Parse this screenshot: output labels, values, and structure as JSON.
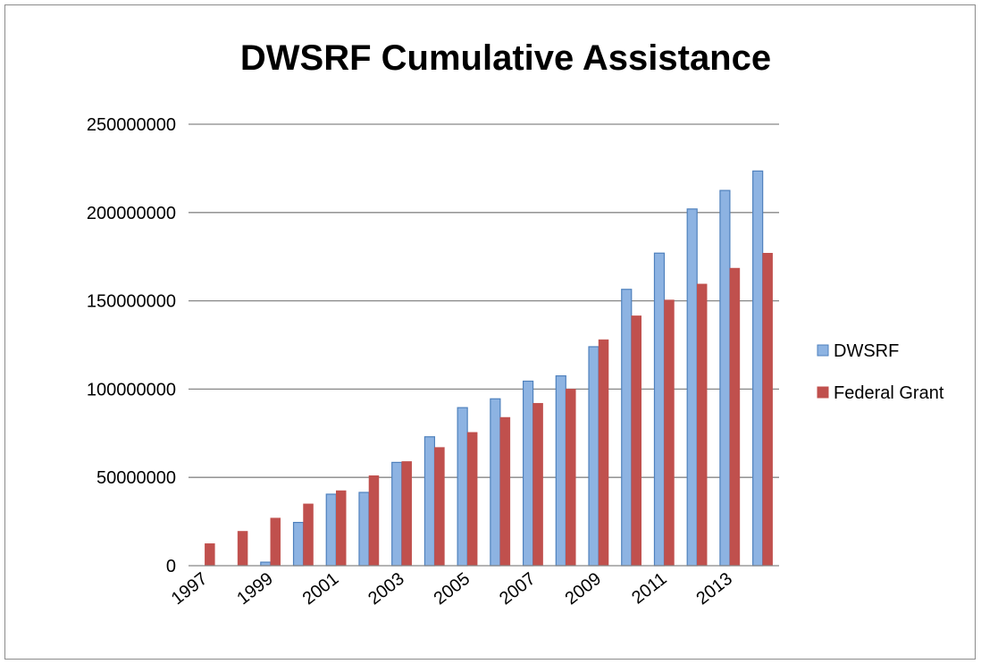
{
  "chart_data": {
    "type": "bar",
    "title": "DWSRF Cumulative Assistance",
    "xlabel": "",
    "ylabel": "",
    "ylim": [
      0,
      250000000
    ],
    "y_ticks": [
      "0",
      "50000000",
      "100000000",
      "150000000",
      "200000000",
      "250000000"
    ],
    "y_tick_values": [
      0,
      50000000,
      100000000,
      150000000,
      200000000,
      250000000
    ],
    "categories": [
      "1997",
      "1998",
      "1999",
      "2000",
      "2001",
      "2002",
      "2003",
      "2004",
      "2005",
      "2006",
      "2007",
      "2008",
      "2009",
      "2010",
      "2011",
      "2012",
      "2013",
      "2014"
    ],
    "x_tick_labels": [
      "1997",
      "",
      "1999",
      "",
      "2001",
      "",
      "2003",
      "",
      "2005",
      "",
      "2007",
      "",
      "2009",
      "",
      "2011",
      "",
      "2013",
      ""
    ],
    "grid": true,
    "legend_position": "right",
    "series": [
      {
        "name": "DWSRF",
        "color": "#8db3e2",
        "stroke": "#4f81bd",
        "values": [
          0,
          0,
          2000000,
          24500000,
          40500000,
          41500000,
          58500000,
          73000000,
          89500000,
          94500000,
          104500000,
          107500000,
          124000000,
          156500000,
          177000000,
          202000000,
          212500000,
          223500000
        ]
      },
      {
        "name": "Federal Grant",
        "color": "#c0504d",
        "stroke": "#c0504d",
        "values": [
          12500000,
          19500000,
          27000000,
          35000000,
          42500000,
          51000000,
          59000000,
          67000000,
          75500000,
          84000000,
          92000000,
          100000000,
          128000000,
          141500000,
          150500000,
          159500000,
          168500000,
          177000000
        ]
      }
    ]
  }
}
